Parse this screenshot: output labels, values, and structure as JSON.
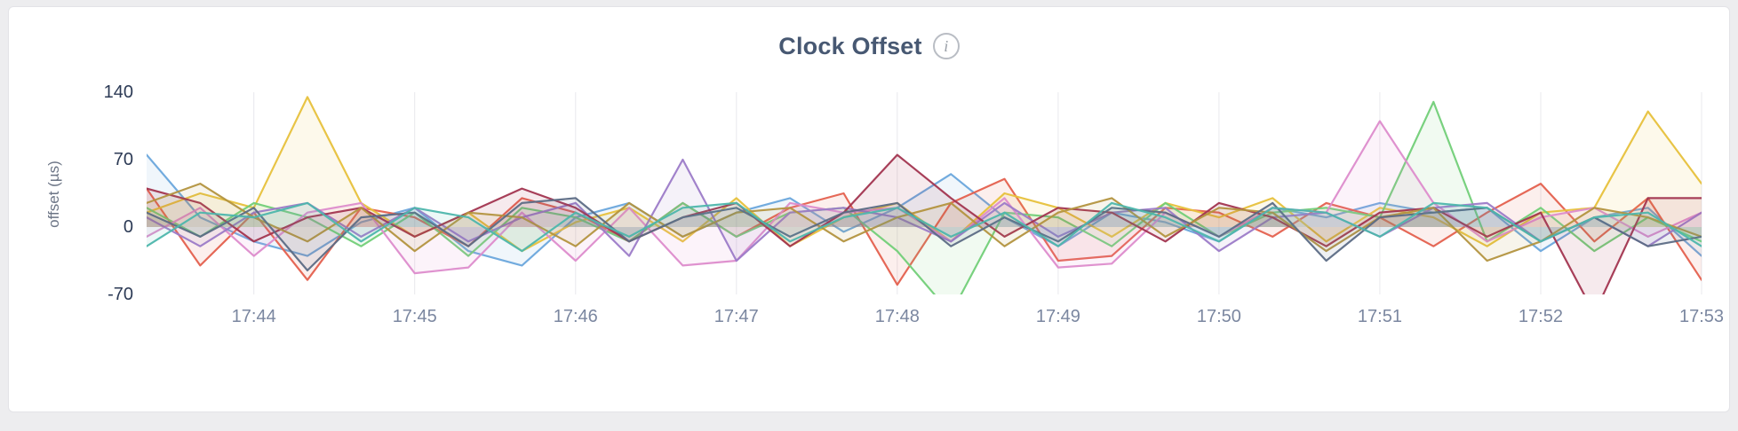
{
  "card": {
    "title": "Clock Offset",
    "info_icon": "i"
  },
  "axes": {
    "y_label": "offset (µs)"
  },
  "chart_data": {
    "type": "line",
    "title": "Clock Offset",
    "xlabel": "",
    "ylabel": "offset (µs)",
    "ylim": [
      -70,
      140
    ],
    "x_domain_s": [
      0,
      580
    ],
    "grid": "vertical-only",
    "legend": "none",
    "x_s": [
      0,
      20,
      40,
      60,
      80,
      100,
      120,
      140,
      160,
      180,
      200,
      220,
      240,
      260,
      280,
      300,
      320,
      340,
      360,
      380,
      400,
      420,
      440,
      460,
      480,
      500,
      520,
      540,
      560,
      580
    ],
    "xticks": [
      {
        "label": "17:44",
        "s": 40
      },
      {
        "label": "17:45",
        "s": 100
      },
      {
        "label": "17:46",
        "s": 160
      },
      {
        "label": "17:47",
        "s": 220
      },
      {
        "label": "17:48",
        "s": 280
      },
      {
        "label": "17:49",
        "s": 340
      },
      {
        "label": "17:50",
        "s": 400
      },
      {
        "label": "17:51",
        "s": 460
      },
      {
        "label": "17:52",
        "s": 520
      },
      {
        "label": "17:53",
        "s": 580
      }
    ],
    "yticks": [
      {
        "label": "140",
        "v": 140
      },
      {
        "label": "70",
        "v": 70
      },
      {
        "label": "0",
        "v": 0
      },
      {
        "label": "-70",
        "v": -70
      }
    ],
    "series": [
      {
        "name": "blue",
        "color": "#6aa6dc",
        "values": [
          75,
          10,
          -15,
          -30,
          5,
          20,
          -25,
          -40,
          10,
          25,
          -10,
          15,
          30,
          -5,
          20,
          55,
          10,
          -20,
          15,
          5,
          -15,
          20,
          10,
          25,
          15,
          20,
          -25,
          10,
          20,
          -30
        ]
      },
      {
        "name": "coral",
        "color": "#e4604e",
        "values": [
          40,
          -40,
          15,
          -55,
          20,
          10,
          -20,
          30,
          15,
          -15,
          25,
          -10,
          20,
          35,
          -60,
          25,
          50,
          -35,
          -30,
          20,
          15,
          -10,
          25,
          10,
          -20,
          15,
          45,
          -15,
          30,
          -55
        ]
      },
      {
        "name": "yellow",
        "color": "#e7c13c",
        "values": [
          15,
          35,
          20,
          135,
          25,
          -10,
          15,
          -25,
          5,
          20,
          -15,
          30,
          -20,
          10,
          25,
          -15,
          35,
          20,
          -10,
          25,
          10,
          30,
          -15,
          20,
          10,
          -20,
          15,
          20,
          120,
          45
        ]
      },
      {
        "name": "green",
        "color": "#72cf78",
        "values": [
          20,
          -10,
          25,
          10,
          -20,
          15,
          -30,
          20,
          10,
          -15,
          25,
          -10,
          15,
          20,
          -25,
          -90,
          15,
          10,
          -20,
          25,
          -10,
          15,
          20,
          10,
          130,
          -15,
          20,
          -25,
          10,
          -15
        ]
      },
      {
        "name": "pink",
        "color": "#dd8ccc",
        "values": [
          -10,
          20,
          -30,
          15,
          25,
          -48,
          -42,
          15,
          -35,
          20,
          -40,
          -35,
          25,
          15,
          20,
          -15,
          30,
          -42,
          -38,
          15,
          -10,
          20,
          15,
          110,
          25,
          -15,
          10,
          20,
          -10,
          15
        ]
      },
      {
        "name": "purple",
        "color": "#9c7bc8",
        "values": [
          10,
          -20,
          15,
          25,
          -10,
          20,
          -15,
          10,
          25,
          -30,
          70,
          -35,
          15,
          20,
          10,
          -15,
          25,
          -10,
          15,
          20,
          -25,
          10,
          15,
          -10,
          20,
          25,
          -15,
          10,
          -20,
          15
        ]
      },
      {
        "name": "maroon",
        "color": "#a23550",
        "values": [
          40,
          25,
          -15,
          10,
          20,
          -10,
          15,
          40,
          20,
          -15,
          10,
          25,
          -20,
          15,
          75,
          30,
          -10,
          20,
          15,
          -15,
          25,
          10,
          -20,
          15,
          20,
          -10,
          15,
          -90,
          30,
          30
        ]
      },
      {
        "name": "olive",
        "color": "#b3933f",
        "values": [
          25,
          45,
          10,
          -15,
          20,
          -25,
          15,
          10,
          -20,
          25,
          -10,
          15,
          20,
          -15,
          10,
          25,
          -20,
          15,
          30,
          -10,
          20,
          15,
          -25,
          10,
          20,
          -35,
          -15,
          20,
          10,
          -10
        ]
      },
      {
        "name": "slate",
        "color": "#5c6b85",
        "values": [
          15,
          -10,
          20,
          -45,
          10,
          15,
          -20,
          25,
          30,
          -15,
          10,
          20,
          -10,
          15,
          25,
          -20,
          10,
          -15,
          20,
          15,
          -10,
          25,
          -35,
          10,
          15,
          20,
          -15,
          10,
          -20,
          -10
        ]
      },
      {
        "name": "teal",
        "color": "#4db6ac",
        "values": [
          -20,
          15,
          10,
          25,
          -15,
          20,
          10,
          -25,
          15,
          -10,
          20,
          25,
          -15,
          10,
          20,
          -10,
          15,
          -20,
          25,
          10,
          -15,
          20,
          15,
          -10,
          25,
          20,
          -15,
          10,
          15,
          -20
        ]
      }
    ]
  }
}
